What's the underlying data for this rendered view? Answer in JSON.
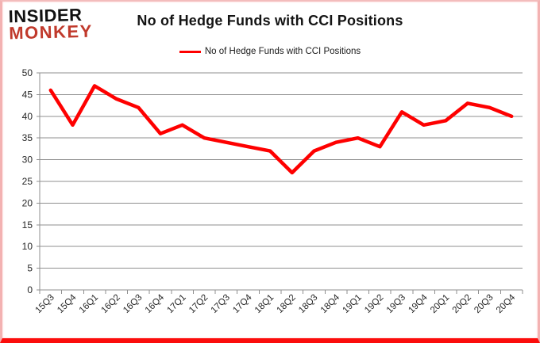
{
  "logo": {
    "line1": "INSIDER",
    "line2": "MONKEY"
  },
  "header": {
    "title": "No of Hedge Funds with CCI Positions"
  },
  "legend": {
    "label": "No of Hedge Funds with CCI Positions"
  },
  "colors": {
    "line": "#fe0000",
    "logo_black": "#111111",
    "logo_red": "#c0392b",
    "grid": "#8f8f8f",
    "axis_text": "#262626",
    "border_pink": "#f3b2b2",
    "border_red": "#fb0d0c"
  },
  "chart_data": {
    "type": "line",
    "title": "No of Hedge Funds with CCI Positions",
    "categories": [
      "15Q3",
      "15Q4",
      "16Q1",
      "16Q2",
      "16Q3",
      "16Q4",
      "17Q1",
      "17Q2",
      "17Q3",
      "17Q4",
      "18Q1",
      "18Q2",
      "18Q3",
      "18Q4",
      "19Q1",
      "19Q2",
      "19Q3",
      "19Q4",
      "20Q1",
      "20Q2",
      "20Q3",
      "20Q4"
    ],
    "series": [
      {
        "name": "No of Hedge Funds with CCI Positions",
        "values": [
          46,
          38,
          47,
          44,
          42,
          36,
          38,
          35,
          34,
          33,
          32,
          27,
          32,
          34,
          35,
          33,
          41,
          38,
          39,
          43,
          42,
          40
        ]
      }
    ],
    "xlabel": "",
    "ylabel": "",
    "ylim": [
      0,
      50
    ],
    "ytick_step": 5,
    "grid": true,
    "legend_position": "top",
    "x_label_rotation": -45
  }
}
